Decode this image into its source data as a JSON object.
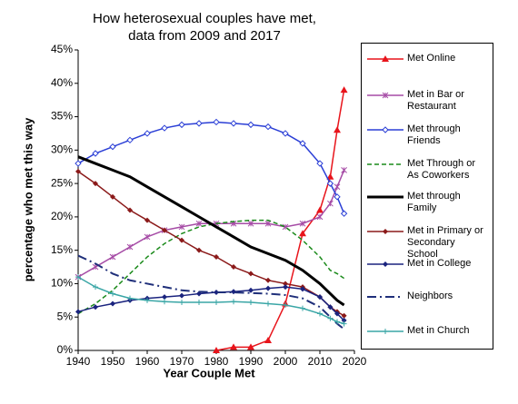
{
  "chart_data": {
    "type": "line",
    "title": "How heterosexual couples have met,",
    "subtitle": "data from 2009 and 2017",
    "x_label": "Year Couple Met",
    "y_label": "percentage who met this way",
    "x": [
      1940,
      1945,
      1950,
      1955,
      1960,
      1965,
      1970,
      1975,
      1980,
      1985,
      1990,
      1995,
      2000,
      2005,
      2010,
      2013,
      2015,
      2017
    ],
    "xlim": [
      1940,
      2020
    ],
    "xticks": [
      1940,
      1950,
      1960,
      1970,
      1980,
      1990,
      2000,
      2010,
      2020
    ],
    "ylim": [
      0,
      45
    ],
    "yticks": [
      {
        "value": 0,
        "label": "0%"
      },
      {
        "value": 5,
        "label": "5%"
      },
      {
        "value": 10,
        "label": "10%"
      },
      {
        "value": 15,
        "label": "15%"
      },
      {
        "value": 20,
        "label": "20%"
      },
      {
        "value": 25,
        "label": "25%"
      },
      {
        "value": 30,
        "label": "30%"
      },
      {
        "value": 35,
        "label": "35%"
      },
      {
        "value": 40,
        "label": "40%"
      },
      {
        "value": 45,
        "label": "45%"
      }
    ],
    "series": [
      {
        "name": "Met Online",
        "color": "#e8141b",
        "marker": "triangle",
        "dash": "solid",
        "values": [
          null,
          null,
          null,
          null,
          null,
          null,
          null,
          null,
          0,
          0.5,
          0.5,
          1.5,
          7,
          17.5,
          21,
          26,
          33,
          39
        ]
      },
      {
        "name": "Met in Bar or Restaurant",
        "color": "#a64ca6",
        "marker": "star",
        "dash": "solid",
        "values": [
          11,
          12.5,
          14,
          15.5,
          17,
          18,
          18.5,
          19,
          19,
          19,
          19,
          19,
          18.5,
          19,
          20,
          22,
          24.5,
          27
        ]
      },
      {
        "name": "Met through Friends",
        "color": "#2b3fd6",
        "marker": "open-diamond",
        "dash": "solid",
        "values": [
          28,
          29.5,
          30.5,
          31.5,
          32.5,
          33.3,
          33.8,
          34,
          34.2,
          34,
          33.8,
          33.5,
          32.5,
          31,
          28,
          25,
          23,
          20.5
        ]
      },
      {
        "name": "Met Through or As Coworkers",
        "color": "#1a8a1a",
        "marker": "none",
        "dash": "dashed",
        "values": [
          5.5,
          7,
          9,
          11.5,
          14,
          16,
          17.5,
          18.5,
          19,
          19.3,
          19.5,
          19.5,
          18.5,
          16.5,
          14,
          12,
          11.5,
          10.8
        ]
      },
      {
        "name": "Met through Family",
        "color": "#000000",
        "marker": "none",
        "dash": "thick",
        "values": [
          29,
          28,
          27,
          26,
          24.5,
          23,
          21.5,
          20,
          18.5,
          17,
          15.5,
          14.5,
          13.5,
          12,
          10,
          8.5,
          7.5,
          6.8
        ]
      },
      {
        "name": "Met in Primary or Secondary School",
        "color": "#8b1a1a",
        "marker": "diamond",
        "dash": "solid",
        "values": [
          26.8,
          25,
          23,
          21,
          19.5,
          18,
          16.5,
          15,
          14,
          12.5,
          11.5,
          10.5,
          10,
          9.5,
          8,
          6.5,
          5.8,
          5.2
        ]
      },
      {
        "name": "Met in College",
        "color": "#1a237e",
        "marker": "diamond",
        "dash": "solid",
        "values": [
          5.8,
          6.5,
          7,
          7.5,
          7.8,
          8,
          8.2,
          8.5,
          8.7,
          8.8,
          9,
          9.3,
          9.5,
          9.2,
          8,
          6.5,
          5.5,
          4.5
        ]
      },
      {
        "name": "Neighbors",
        "color": "#1f2f7a",
        "marker": "none",
        "dash": "dashdot",
        "values": [
          14.2,
          13,
          11.5,
          10.5,
          10,
          9.5,
          9,
          8.8,
          8.7,
          8.7,
          8.6,
          8.5,
          8.3,
          7.8,
          6.5,
          5,
          4,
          3.2
        ]
      },
      {
        "name": "Met in Church",
        "color": "#3aa6a6",
        "marker": "plus",
        "dash": "solid",
        "values": [
          11,
          9.5,
          8.5,
          7.8,
          7.5,
          7.3,
          7.2,
          7.2,
          7.2,
          7.3,
          7.2,
          7,
          6.8,
          6.3,
          5.5,
          4.8,
          4.3,
          4
        ]
      }
    ]
  }
}
